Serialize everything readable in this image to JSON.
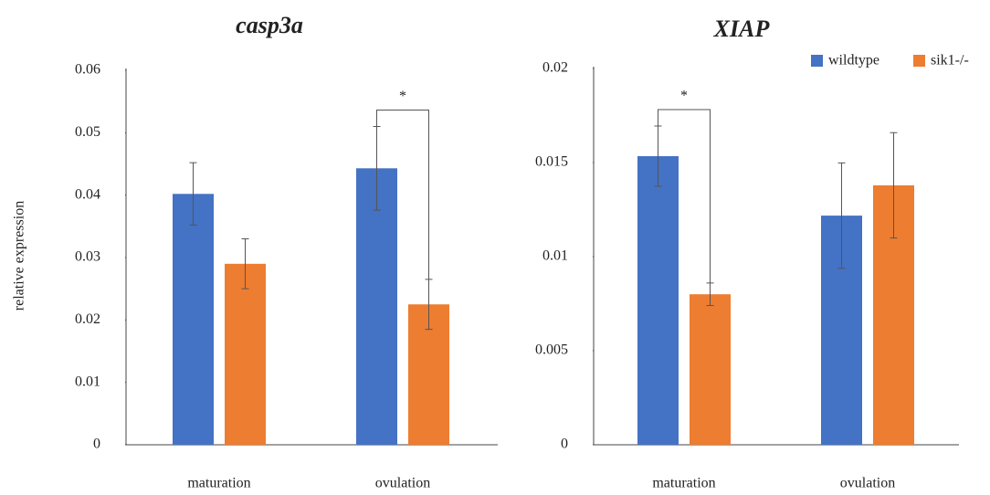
{
  "chart_data": [
    {
      "type": "bar",
      "title": "casp3a",
      "y_label": "relative expression",
      "categories": [
        "maturation",
        "ovulation"
      ],
      "series": [
        {
          "color": "#4472c4",
          "values": [
            0.0402,
            0.0443
          ],
          "errors": [
            0.005,
            0.0067
          ]
        },
        {
          "color": "#ed7d31",
          "values": [
            0.029,
            0.0225
          ],
          "errors": [
            0.004,
            0.004
          ]
        }
      ],
      "ylim": [
        0,
        0.06
      ],
      "yticks": [
        0,
        0.01,
        0.02,
        0.03,
        0.04,
        0.05,
        0.06
      ],
      "annotations": [
        {
          "text": "*",
          "category": 1
        }
      ]
    },
    {
      "type": "bar",
      "title": "XIAP",
      "categories": [
        "maturation",
        "ovulation"
      ],
      "series": [
        {
          "name": "wildtype",
          "color": "#4472c4",
          "values": [
            0.01534,
            0.01218
          ],
          "errors": [
            0.0016,
            0.0028
          ]
        },
        {
          "name": "sik1-/-",
          "color": "#ed7d31",
          "values": [
            0.008,
            0.01379
          ],
          "errors": [
            0.0006,
            0.0028
          ]
        }
      ],
      "ylim": [
        0,
        0.02
      ],
      "yticks": [
        0,
        0.005,
        0.01,
        0.015,
        0.02
      ],
      "legend": "upper right",
      "annotations": [
        {
          "text": "*",
          "category": 0
        }
      ]
    }
  ]
}
